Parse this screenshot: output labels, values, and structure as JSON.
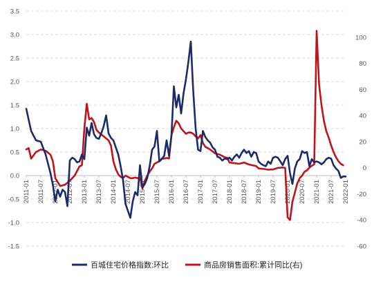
{
  "chart_data": {
    "type": "line",
    "title": "",
    "xlabel": "",
    "ylabel_left": "",
    "ylabel_right": "",
    "ylim_left": [
      -1.5,
      3.5
    ],
    "yticks_left": [
      "3.5",
      "3.0",
      "2.5",
      "2.0",
      "1.5",
      "1.0",
      "0.5",
      "0.0",
      "-0.5",
      "-1.0",
      "-1.5"
    ],
    "ylim_right": [
      -60,
      120
    ],
    "yticks_right": [
      "100",
      "80",
      "60",
      "40",
      "20",
      "0",
      "-20",
      "-40",
      "-60"
    ],
    "x_range": [
      "2011-01",
      "2022-01"
    ],
    "x_tick_labels": [
      "2011-01",
      "2011-07",
      "2012-01",
      "2012-07",
      "2013-01",
      "2013-07",
      "2014-01",
      "2014-07",
      "2015-01",
      "2015-07",
      "2016-01",
      "2016-07",
      "2017-01",
      "2017-07",
      "2018-01",
      "2018-07",
      "2019-01",
      "2019-07",
      "2020-01",
      "2020-07",
      "2021-01",
      "2021-07",
      "2022-01"
    ],
    "grid": "horizontal-dashed",
    "legend_position": "bottom",
    "series": [
      {
        "name": "百城住宅价格指数:环比",
        "axis": "left",
        "color": "#1b2a6b",
        "points": [
          [
            "2011-01",
            1.42
          ],
          [
            "2011-03",
            0.95
          ],
          [
            "2011-05",
            0.75
          ],
          [
            "2011-07",
            0.72
          ],
          [
            "2011-09",
            0.45
          ],
          [
            "2011-11",
            0.05
          ],
          [
            "2011-12",
            -0.2
          ],
          [
            "2012-01",
            -0.55
          ],
          [
            "2012-02",
            -0.3
          ],
          [
            "2012-03",
            -0.45
          ],
          [
            "2012-04",
            -0.3
          ],
          [
            "2012-05",
            -0.35
          ],
          [
            "2012-06",
            -0.65
          ],
          [
            "2012-07",
            0.32
          ],
          [
            "2012-08",
            0.38
          ],
          [
            "2012-09",
            0.35
          ],
          [
            "2012-10",
            0.28
          ],
          [
            "2012-11",
            0.3
          ],
          [
            "2012-12",
            0.45
          ],
          [
            "2013-01",
            0.35
          ],
          [
            "2013-02",
            1.02
          ],
          [
            "2013-03",
            0.85
          ],
          [
            "2013-04",
            1.12
          ],
          [
            "2013-05",
            0.88
          ],
          [
            "2013-06",
            0.8
          ],
          [
            "2013-07",
            0.78
          ],
          [
            "2013-08",
            0.9
          ],
          [
            "2013-09",
            1.05
          ],
          [
            "2013-10",
            1.28
          ],
          [
            "2013-11",
            0.9
          ],
          [
            "2013-12",
            0.8
          ],
          [
            "2014-01",
            0.75
          ],
          [
            "2014-02",
            0.6
          ],
          [
            "2014-03",
            0.45
          ],
          [
            "2014-04",
            0.2
          ],
          [
            "2014-05",
            -0.1
          ],
          [
            "2014-06",
            -0.6
          ],
          [
            "2014-07",
            -0.75
          ],
          [
            "2014-08",
            -0.9
          ],
          [
            "2014-09",
            -0.55
          ],
          [
            "2014-10",
            -0.35
          ],
          [
            "2014-11",
            -0.42
          ],
          [
            "2014-12",
            0.22
          ],
          [
            "2015-01",
            -0.25
          ],
          [
            "2015-02",
            -0.18
          ],
          [
            "2015-03",
            -0.05
          ],
          [
            "2015-04",
            0.2
          ],
          [
            "2015-05",
            0.55
          ],
          [
            "2015-06",
            0.62
          ],
          [
            "2015-07",
            0.95
          ],
          [
            "2015-08",
            0.3
          ],
          [
            "2015-09",
            0.35
          ],
          [
            "2015-10",
            0.42
          ],
          [
            "2015-11",
            0.75
          ],
          [
            "2015-12",
            0.42
          ],
          [
            "2016-01",
            0.85
          ],
          [
            "2016-02",
            1.9
          ],
          [
            "2016-03",
            1.45
          ],
          [
            "2016-04",
            1.72
          ],
          [
            "2016-05",
            1.32
          ],
          [
            "2016-06",
            1.75
          ],
          [
            "2016-07",
            2.05
          ],
          [
            "2016-08",
            2.42
          ],
          [
            "2016-09",
            2.85
          ],
          [
            "2016-10",
            1.8
          ],
          [
            "2016-11",
            1.0
          ],
          [
            "2016-12",
            0.55
          ],
          [
            "2017-01",
            0.52
          ],
          [
            "2017-02",
            0.95
          ],
          [
            "2017-03",
            0.82
          ],
          [
            "2017-04",
            0.75
          ],
          [
            "2017-05",
            0.7
          ],
          [
            "2017-06",
            0.6
          ],
          [
            "2017-07",
            0.55
          ],
          [
            "2017-08",
            0.4
          ],
          [
            "2017-09",
            0.38
          ],
          [
            "2017-10",
            0.32
          ],
          [
            "2017-11",
            0.36
          ],
          [
            "2017-12",
            0.35
          ],
          [
            "2018-01",
            0.38
          ],
          [
            "2018-02",
            0.32
          ],
          [
            "2018-03",
            0.4
          ],
          [
            "2018-04",
            0.45
          ],
          [
            "2018-05",
            0.38
          ],
          [
            "2018-06",
            0.48
          ],
          [
            "2018-07",
            0.55
          ],
          [
            "2018-08",
            0.48
          ],
          [
            "2018-09",
            0.52
          ],
          [
            "2018-10",
            0.4
          ],
          [
            "2018-11",
            0.5
          ],
          [
            "2018-12",
            0.48
          ],
          [
            "2019-01",
            0.3
          ],
          [
            "2019-02",
            0.25
          ],
          [
            "2019-03",
            0.22
          ],
          [
            "2019-04",
            0.2
          ],
          [
            "2019-05",
            0.3
          ],
          [
            "2019-06",
            0.25
          ],
          [
            "2019-07",
            0.38
          ],
          [
            "2019-08",
            0.4
          ],
          [
            "2019-09",
            0.38
          ],
          [
            "2019-10",
            0.3
          ],
          [
            "2019-11",
            0.22
          ],
          [
            "2019-12",
            0.35
          ],
          [
            "2020-01",
            0.42
          ],
          [
            "2020-02",
            0.05
          ],
          [
            "2020-03",
            -0.18
          ],
          [
            "2020-04",
            0.15
          ],
          [
            "2020-05",
            0.3
          ],
          [
            "2020-06",
            0.35
          ],
          [
            "2020-07",
            0.52
          ],
          [
            "2020-08",
            0.48
          ],
          [
            "2020-09",
            0.5
          ],
          [
            "2020-10",
            0.2
          ],
          [
            "2020-11",
            0.35
          ],
          [
            "2020-12",
            0.28
          ],
          [
            "2021-01",
            0.3
          ],
          [
            "2021-02",
            0.28
          ],
          [
            "2021-03",
            0.24
          ],
          [
            "2021-04",
            0.28
          ],
          [
            "2021-05",
            0.35
          ],
          [
            "2021-06",
            0.38
          ],
          [
            "2021-07",
            0.36
          ],
          [
            "2021-08",
            0.22
          ],
          [
            "2021-09",
            0.15
          ],
          [
            "2021-10",
            0.1
          ],
          [
            "2021-11",
            -0.05
          ],
          [
            "2021-12",
            -0.02
          ],
          [
            "2022-01",
            -0.02
          ]
        ]
      },
      {
        "name": "商品房销售面积:累计同比(右)",
        "axis": "right",
        "color": "#c0121b",
        "points": [
          [
            "2011-01",
            14
          ],
          [
            "2011-02",
            15
          ],
          [
            "2011-03",
            7
          ],
          [
            "2011-05",
            12
          ],
          [
            "2011-07",
            14
          ],
          [
            "2011-09",
            13
          ],
          [
            "2011-11",
            10
          ],
          [
            "2011-12",
            5
          ],
          [
            "2012-01",
            -8
          ],
          [
            "2012-03",
            -14
          ],
          [
            "2012-05",
            -13
          ],
          [
            "2012-07",
            -10
          ],
          [
            "2012-09",
            -6
          ],
          [
            "2012-11",
            1
          ],
          [
            "2012-12",
            2
          ],
          [
            "2013-01",
            30
          ],
          [
            "2013-02",
            49
          ],
          [
            "2013-03",
            37
          ],
          [
            "2013-04",
            38
          ],
          [
            "2013-05",
            35
          ],
          [
            "2013-06",
            29
          ],
          [
            "2013-07",
            27
          ],
          [
            "2013-09",
            24
          ],
          [
            "2013-11",
            21
          ],
          [
            "2013-12",
            17
          ],
          [
            "2014-01",
            5
          ],
          [
            "2014-02",
            -1
          ],
          [
            "2014-03",
            -5
          ],
          [
            "2014-04",
            -7
          ],
          [
            "2014-05",
            -8
          ],
          [
            "2014-06",
            -6
          ],
          [
            "2014-07",
            -7
          ],
          [
            "2014-08",
            -8
          ],
          [
            "2014-09",
            -8
          ],
          [
            "2014-10",
            -7.5
          ],
          [
            "2014-11",
            -8
          ],
          [
            "2014-12",
            -7.5
          ],
          [
            "2015-01",
            -16
          ],
          [
            "2015-02",
            -10
          ],
          [
            "2015-03",
            -6
          ],
          [
            "2015-04",
            -3
          ],
          [
            "2015-05",
            -0.5
          ],
          [
            "2015-06",
            3
          ],
          [
            "2015-07",
            4
          ],
          [
            "2015-08",
            5
          ],
          [
            "2015-09",
            7
          ],
          [
            "2015-10",
            7
          ],
          [
            "2015-11",
            7.5
          ],
          [
            "2015-12",
            7
          ],
          [
            "2016-01",
            25
          ],
          [
            "2016-02",
            31
          ],
          [
            "2016-03",
            36
          ],
          [
            "2016-04",
            34
          ],
          [
            "2016-05",
            30
          ],
          [
            "2016-06",
            28
          ],
          [
            "2016-07",
            26
          ],
          [
            "2016-08",
            27
          ],
          [
            "2016-09",
            27
          ],
          [
            "2016-10",
            26
          ],
          [
            "2016-11",
            24
          ],
          [
            "2016-12",
            22.5
          ],
          [
            "2017-01",
            25
          ],
          [
            "2017-02",
            19
          ],
          [
            "2017-03",
            16
          ],
          [
            "2017-05",
            14
          ],
          [
            "2017-07",
            11
          ],
          [
            "2017-09",
            10
          ],
          [
            "2017-11",
            8
          ],
          [
            "2017-12",
            7.7
          ],
          [
            "2018-01",
            4
          ],
          [
            "2018-03",
            3.5
          ],
          [
            "2018-05",
            3
          ],
          [
            "2018-07",
            4
          ],
          [
            "2018-09",
            2.5
          ],
          [
            "2018-11",
            1.7
          ],
          [
            "2018-12",
            1.3
          ],
          [
            "2019-01",
            -0.5
          ],
          [
            "2019-03",
            -0.9
          ],
          [
            "2019-05",
            -1.5
          ],
          [
            "2019-07",
            -1.3
          ],
          [
            "2019-09",
            -0.1
          ],
          [
            "2019-11",
            0.2
          ],
          [
            "2019-12",
            -0.1
          ],
          [
            "2020-01",
            -38
          ],
          [
            "2020-02",
            -40
          ],
          [
            "2020-03",
            -26
          ],
          [
            "2020-04",
            -19
          ],
          [
            "2020-05",
            -12
          ],
          [
            "2020-06",
            -8
          ],
          [
            "2020-07",
            -6
          ],
          [
            "2020-08",
            -3
          ],
          [
            "2020-09",
            -2
          ],
          [
            "2020-10",
            0
          ],
          [
            "2020-11",
            1.5
          ],
          [
            "2020-12",
            2.6
          ],
          [
            "2021-01",
            104.9
          ],
          [
            "2021-02",
            64
          ],
          [
            "2021-03",
            48
          ],
          [
            "2021-04",
            36
          ],
          [
            "2021-05",
            28
          ],
          [
            "2021-06",
            23
          ],
          [
            "2021-07",
            17
          ],
          [
            "2021-08",
            12
          ],
          [
            "2021-09",
            8
          ],
          [
            "2021-10",
            5
          ],
          [
            "2021-11",
            3
          ],
          [
            "2021-12",
            1.9
          ]
        ]
      }
    ]
  }
}
